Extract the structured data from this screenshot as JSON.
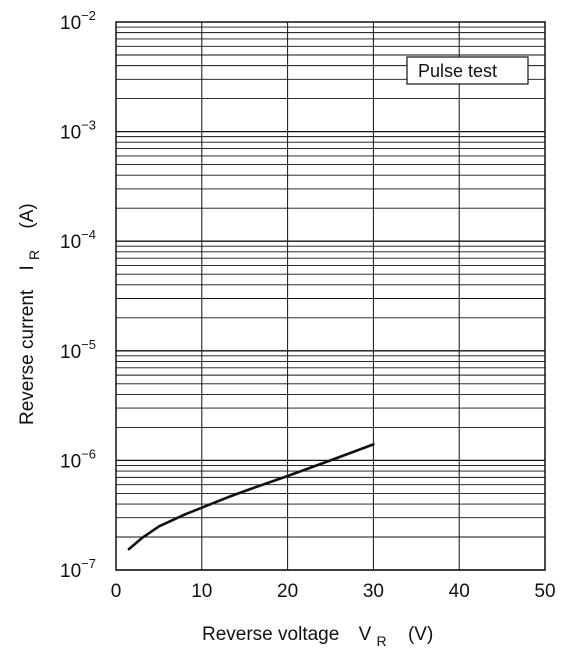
{
  "chart_data": {
    "type": "line",
    "x_axis": {
      "label_main": "Reverse voltage",
      "label_symbol": "V",
      "label_subscript": "R",
      "label_unit": "(V)",
      "lim": [
        0,
        50
      ],
      "ticks": [
        0,
        10,
        20,
        30,
        40,
        50
      ],
      "tick_labels": [
        "0",
        "10",
        "20",
        "30",
        "40",
        "50"
      ]
    },
    "y_axis": {
      "label_main": "Reverse current",
      "label_symbol": "I",
      "label_subscript": "R",
      "label_unit": "(A)",
      "scale": "log",
      "lim": [
        1e-07,
        0.01
      ],
      "ticks": [
        1e-07,
        1e-06,
        1e-05,
        0.0001,
        0.001,
        0.01
      ],
      "tick_labels": [
        {
          "base": "10",
          "exp": "−7"
        },
        {
          "base": "10",
          "exp": "−6"
        },
        {
          "base": "10",
          "exp": "−5"
        },
        {
          "base": "10",
          "exp": "−4"
        },
        {
          "base": "10",
          "exp": "−3"
        },
        {
          "base": "10",
          "exp": "−2"
        }
      ]
    },
    "grid": true,
    "annotation": "Pulse test",
    "series": [
      {
        "color": "#111111",
        "x": [
          1.5,
          3,
          5,
          8,
          10,
          13,
          16,
          20,
          25,
          30
        ],
        "y": [
          1.55e-07,
          1.95e-07,
          2.5e-07,
          3.2e-07,
          3.7e-07,
          4.6e-07,
          5.6e-07,
          7.2e-07,
          1e-06,
          1.4e-06
        ]
      }
    ]
  }
}
